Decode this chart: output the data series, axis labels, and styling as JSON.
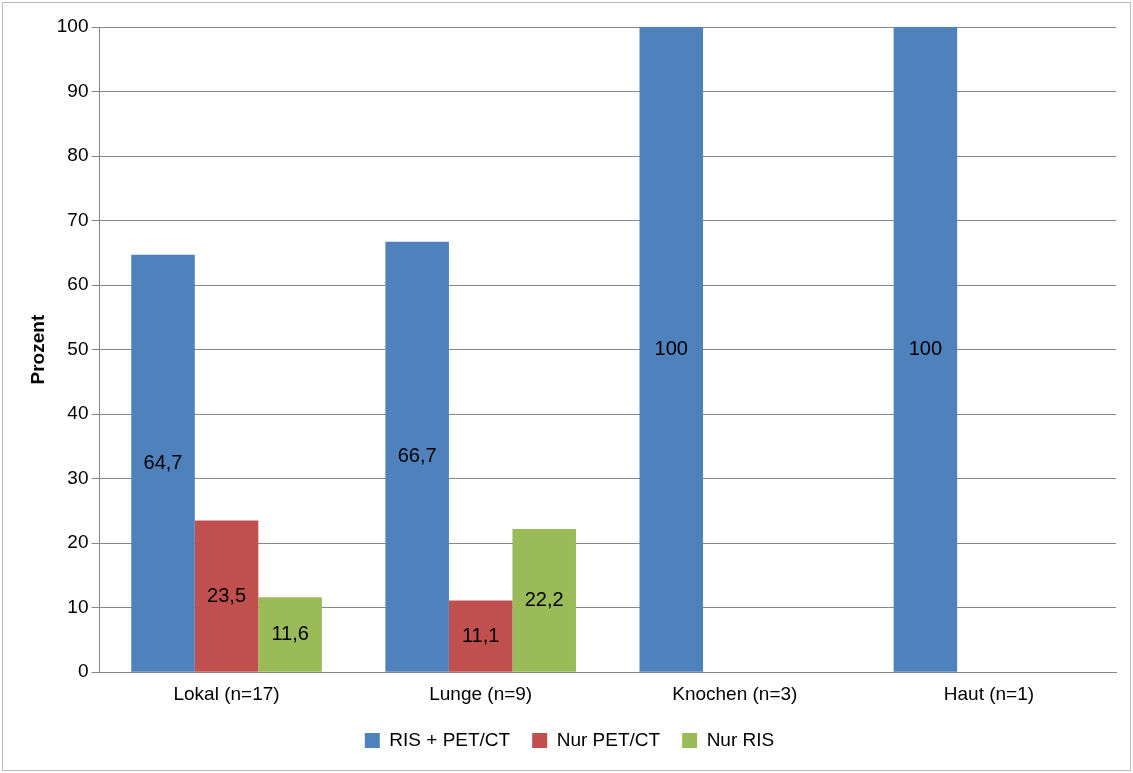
{
  "chart_data": {
    "type": "bar",
    "ylabel": "Prozent",
    "categories": [
      "Lokal (n=17)",
      "Lunge (n=9)",
      "Knochen (n=3)",
      "Haut (n=1)"
    ],
    "series": [
      {
        "name": "RIS + PET/CT",
        "color": "#4f81bd",
        "values": [
          64.7,
          66.7,
          100,
          100
        ],
        "value_labels": [
          "64,7",
          "66,7",
          "100",
          "100"
        ]
      },
      {
        "name": "Nur PET/CT",
        "color": "#c0504d",
        "values": [
          23.5,
          11.1,
          null,
          null
        ],
        "value_labels": [
          "23,5",
          "11,1",
          null,
          null
        ]
      },
      {
        "name": "Nur RIS",
        "color": "#9bbb59",
        "values": [
          11.6,
          22.2,
          null,
          null
        ],
        "value_labels": [
          "11,6",
          "22,2",
          null,
          null
        ]
      }
    ],
    "ylim": [
      0,
      100
    ],
    "yticks": [
      0,
      10,
      20,
      30,
      40,
      50,
      60,
      70,
      80,
      90,
      100
    ],
    "grid": "y",
    "legend": "bottom"
  }
}
